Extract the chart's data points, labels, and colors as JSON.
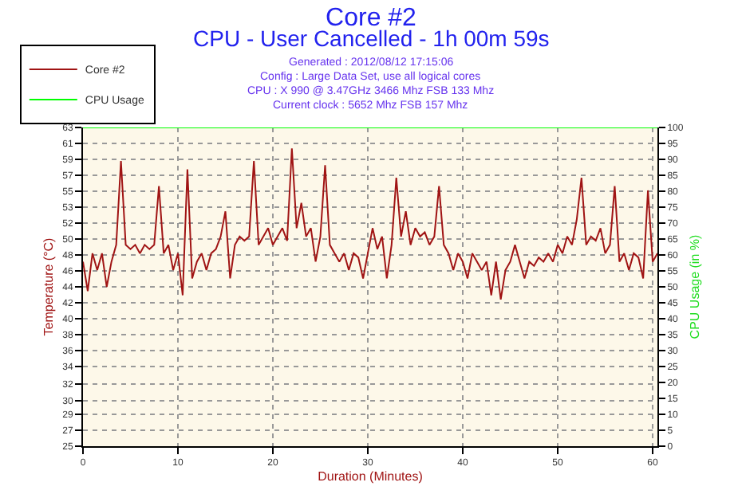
{
  "chart_data": {
    "type": "line",
    "title": "Core #2",
    "subtitle": "CPU - User Cancelled - 1h 00m 59s",
    "annotations": [
      "Generated : 2012/08/12 17:15:06",
      "Config : Large Data Set, use all logical cores",
      "CPU : X 990 @ 3.47GHz 3466 Mhz FSB 133 Mhz",
      "Current clock : 5652 Mhz FSB 157 Mhz"
    ],
    "xlabel": "Duration (Minutes)",
    "ylabel": "Temperature (°C)",
    "y2label": "CPU Usage (in %)",
    "x": [
      0,
      0.5,
      1,
      1.5,
      2,
      2.5,
      3,
      3.5,
      4,
      4.5,
      5,
      5.5,
      6,
      6.5,
      7,
      7.5,
      8,
      8.5,
      9,
      9.5,
      10,
      10.5,
      11,
      11.5,
      12,
      12.5,
      13,
      13.5,
      14,
      14.5,
      15,
      15.5,
      16,
      16.5,
      17,
      17.5,
      18,
      18.5,
      19,
      19.5,
      20,
      20.5,
      21,
      21.5,
      22,
      22.5,
      23,
      23.5,
      24,
      24.5,
      25,
      25.5,
      26,
      26.5,
      27,
      27.5,
      28,
      28.5,
      29,
      29.5,
      30,
      30.5,
      31,
      31.5,
      32,
      32.5,
      33,
      33.5,
      34,
      34.5,
      35,
      35.5,
      36,
      36.5,
      37,
      37.5,
      38,
      38.5,
      39,
      39.5,
      40,
      40.5,
      41,
      41.5,
      42,
      42.5,
      43,
      43.5,
      44,
      44.5,
      45,
      45.5,
      46,
      46.5,
      47,
      47.5,
      48,
      48.5,
      49,
      49.5,
      50,
      50.5,
      51,
      51.5,
      52,
      52.5,
      53,
      53.5,
      54,
      54.5,
      55,
      55.5,
      56,
      56.5,
      57,
      57.5,
      58,
      58.5,
      59,
      59.5,
      60,
      60.5
    ],
    "series": [
      {
        "name": "Core #2",
        "color": "#a01414",
        "values": [
          47,
          43.5,
          48,
          46,
          48,
          44,
          47,
          49,
          59,
          49,
          48.5,
          49,
          48,
          49,
          48.5,
          49,
          56,
          48,
          49,
          46,
          48,
          43,
          58,
          45,
          47,
          48,
          46,
          48,
          48.5,
          50,
          53,
          45,
          49,
          50,
          49.5,
          50,
          59,
          49,
          50,
          51,
          49,
          50,
          51,
          49.5,
          60.5,
          51,
          54,
          50,
          51,
          47,
          50,
          58.5,
          49,
          48,
          47,
          48,
          46,
          48,
          47.5,
          45,
          48,
          51,
          48.5,
          50,
          45,
          49,
          57,
          50,
          53,
          49,
          51,
          50,
          50.5,
          49,
          50,
          56,
          49,
          48,
          46,
          48,
          47,
          45,
          48,
          47,
          46,
          47,
          43,
          47,
          42.5,
          46,
          47,
          49,
          47,
          45,
          47,
          46.5,
          47.5,
          47,
          48,
          47,
          49,
          48,
          50,
          49,
          52,
          57,
          49,
          50,
          49.5,
          51,
          48,
          49,
          56,
          47,
          48,
          46,
          48,
          47.5,
          45,
          55.5,
          47,
          48
        ]
      },
      {
        "name": "CPU Usage",
        "color": "#00ff00",
        "axis": "y2",
        "x": [
          0,
          60.5
        ],
        "values": [
          100,
          100
        ]
      }
    ],
    "xlim": [
      0,
      60.5
    ],
    "xticks": [
      0,
      10,
      20,
      30,
      40,
      50,
      60
    ],
    "ylim": [
      25,
      63
    ],
    "yticks": [
      25,
      {
        "value": 26.9,
        "label": "27"
      },
      {
        "value": 28.8,
        "label": "29"
      },
      {
        "value": 30.4,
        "label": "30"
      },
      {
        "value": 32.4,
        "label": "32"
      },
      {
        "value": 34.5,
        "label": "34"
      },
      {
        "value": 36.4,
        "label": "36"
      },
      {
        "value": 38.3,
        "label": "38"
      },
      {
        "value": 40.2,
        "label": "40"
      },
      {
        "value": 42.1,
        "label": "42"
      },
      44,
      {
        "value": 45.9,
        "label": "46"
      },
      {
        "value": 47.8,
        "label": "48"
      },
      {
        "value": 49.7,
        "label": "50"
      },
      {
        "value": 51.6,
        "label": "52"
      },
      {
        "value": 53.5,
        "label": "53"
      },
      {
        "value": 55.4,
        "label": "55"
      },
      {
        "value": 57.3,
        "label": "57"
      },
      {
        "value": 59.2,
        "label": "59"
      },
      {
        "value": 61.1,
        "label": "61"
      },
      63
    ],
    "y2lim": [
      0,
      100
    ],
    "y2ticks": [
      0,
      5,
      10,
      15,
      20,
      25,
      30,
      35,
      40,
      45,
      50,
      55,
      60,
      65,
      70,
      75,
      80,
      85,
      90,
      95,
      100
    ],
    "grid": true,
    "legend": "top left",
    "marker": "none",
    "line_style": "solid"
  }
}
